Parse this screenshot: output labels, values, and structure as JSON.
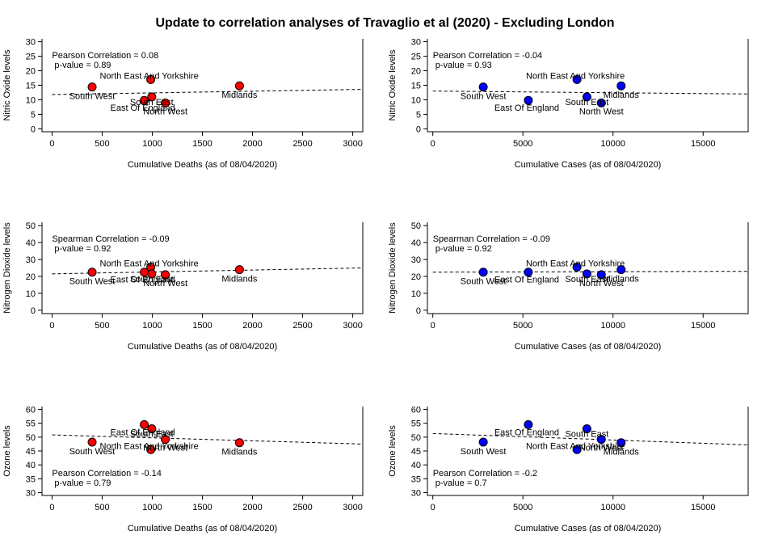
{
  "title": "Update to correlation analyses of Travaglio et al (2020) - Excluding London",
  "chart_data": [
    {
      "type": "scatter",
      "xlabel": "Cumulative Deaths (as of 08/04/2020)",
      "ylabel": "Nitric Oxide levels",
      "xlim": [
        -100,
        3100
      ],
      "xticks": [
        0,
        500,
        1000,
        1500,
        2000,
        2500,
        3000
      ],
      "ylim": [
        -1,
        31
      ],
      "yticks": [
        0,
        5,
        10,
        15,
        20,
        25,
        30
      ],
      "point_color": "#ff0000",
      "stats": [
        "Pearson Correlation = 0.08",
        "p-value = 0.89"
      ],
      "stats_position": "top-left",
      "trend": [
        [
          0,
          11.8
        ],
        [
          3100,
          13.6
        ]
      ],
      "points": [
        {
          "x": 400,
          "y": 14.4,
          "label": "South West"
        },
        {
          "x": 985,
          "y": 17.0,
          "label": "North East And Yorkshire"
        },
        {
          "x": 920,
          "y": 9.8,
          "label": "East Of England"
        },
        {
          "x": 995,
          "y": 11.0,
          "label": "South East"
        },
        {
          "x": 1130,
          "y": 8.9,
          "label": "North West"
        },
        {
          "x": 1870,
          "y": 14.8,
          "label": "Midlands"
        }
      ]
    },
    {
      "type": "scatter",
      "xlabel": "Cumulative Cases (as of 08/04/2020)",
      "ylabel": "Nitric Oxide levels",
      "xlim": [
        -300,
        17500
      ],
      "xticks": [
        0,
        5000,
        10000,
        15000
      ],
      "ylim": [
        -1,
        31
      ],
      "yticks": [
        0,
        5,
        10,
        15,
        20,
        25,
        30
      ],
      "point_color": "#0000ff",
      "stats": [
        "Pearson Correlation = -0.04",
        "p-value = 0.93"
      ],
      "stats_position": "top-left",
      "trend": [
        [
          0,
          13.0
        ],
        [
          17500,
          12.0
        ]
      ],
      "points": [
        {
          "x": 2800,
          "y": 14.4,
          "label": "South West"
        },
        {
          "x": 8000,
          "y": 17.0,
          "label": "North East And Yorkshire"
        },
        {
          "x": 5300,
          "y": 9.8,
          "label": "East Of England"
        },
        {
          "x": 8550,
          "y": 11.0,
          "label": "South East"
        },
        {
          "x": 9350,
          "y": 8.9,
          "label": "North West"
        },
        {
          "x": 10450,
          "y": 14.8,
          "label": "Midlands"
        }
      ]
    },
    {
      "type": "scatter",
      "xlabel": "Cumulative Deaths (as of 08/04/2020)",
      "ylabel": "Nitrogen Dioxide levels",
      "xlim": [
        -100,
        3100
      ],
      "xticks": [
        0,
        500,
        1000,
        1500,
        2000,
        2500,
        3000
      ],
      "ylim": [
        -2,
        52
      ],
      "yticks": [
        0,
        10,
        20,
        30,
        40,
        50
      ],
      "point_color": "#ff0000",
      "stats": [
        "Spearman Correlation = -0.09",
        "p-value = 0.92"
      ],
      "stats_position": "top-left",
      "trend": [
        [
          0,
          21.5
        ],
        [
          3100,
          25.0
        ]
      ],
      "points": [
        {
          "x": 400,
          "y": 22.5,
          "label": "South West"
        },
        {
          "x": 920,
          "y": 22.5,
          "label": "East Of England"
        },
        {
          "x": 985,
          "y": 25.5,
          "label": "North East And Yorkshire"
        },
        {
          "x": 995,
          "y": 21.5,
          "label": "South East"
        },
        {
          "x": 1130,
          "y": 21.0,
          "label": "North West"
        },
        {
          "x": 1870,
          "y": 24.0,
          "label": "Midlands"
        }
      ]
    },
    {
      "type": "scatter",
      "xlabel": "Cumulative Cases (as of 08/04/2020)",
      "ylabel": "Nitrogen Dioxide levels",
      "xlim": [
        -300,
        17500
      ],
      "xticks": [
        0,
        5000,
        10000,
        15000
      ],
      "ylim": [
        -2,
        52
      ],
      "yticks": [
        0,
        10,
        20,
        30,
        40,
        50
      ],
      "point_color": "#0000ff",
      "stats": [
        "Spearman Correlation = -0.09",
        "p-value = 0.92"
      ],
      "stats_position": "top-left",
      "trend": [
        [
          0,
          22.5
        ],
        [
          17500,
          23.0
        ]
      ],
      "points": [
        {
          "x": 2800,
          "y": 22.5,
          "label": "South West"
        },
        {
          "x": 5300,
          "y": 22.5,
          "label": "East Of England"
        },
        {
          "x": 8000,
          "y": 25.5,
          "label": "North East And Yorkshire"
        },
        {
          "x": 8550,
          "y": 21.5,
          "label": "South East"
        },
        {
          "x": 9350,
          "y": 21.0,
          "label": "North West"
        },
        {
          "x": 10450,
          "y": 24.0,
          "label": "Midlands"
        }
      ]
    },
    {
      "type": "scatter",
      "xlabel": "Cumulative Deaths (as of 08/04/2020)",
      "ylabel": "Ozone levels",
      "xlim": [
        -100,
        3100
      ],
      "xticks": [
        0,
        500,
        1000,
        1500,
        2000,
        2500,
        3000
      ],
      "ylim": [
        29,
        61
      ],
      "yticks": [
        30,
        35,
        40,
        45,
        50,
        55,
        60
      ],
      "point_color": "#ff0000",
      "stats": [
        "Pearson Correlation = -0.14",
        "p-value = 0.79"
      ],
      "stats_position": "bottom-left",
      "trend": [
        [
          0,
          50.8
        ],
        [
          3100,
          47.5
        ]
      ],
      "points": [
        {
          "x": 400,
          "y": 48.2,
          "label": "South West"
        },
        {
          "x": 920,
          "y": 54.5,
          "label": "East Of England"
        },
        {
          "x": 985,
          "y": 45.5,
          "label": "North East And Yorkshire"
        },
        {
          "x": 995,
          "y": 53.0,
          "label": "South East"
        },
        {
          "x": 1130,
          "y": 49.2,
          "label": "North West"
        },
        {
          "x": 1870,
          "y": 48.0,
          "label": "Midlands"
        }
      ]
    },
    {
      "type": "scatter",
      "xlabel": "Cumulative Cases (as of 08/04/2020)",
      "ylabel": "Ozone levels",
      "xlim": [
        -300,
        17500
      ],
      "xticks": [
        0,
        5000,
        10000,
        15000
      ],
      "ylim": [
        29,
        61
      ],
      "yticks": [
        30,
        35,
        40,
        45,
        50,
        55,
        60
      ],
      "point_color": "#0000ff",
      "stats": [
        "Pearson Correlation = -0.2",
        "p-value = 0.7"
      ],
      "stats_position": "bottom-left",
      "trend": [
        [
          0,
          51.3
        ],
        [
          17500,
          47.2
        ]
      ],
      "points": [
        {
          "x": 2800,
          "y": 48.2,
          "label": "South West"
        },
        {
          "x": 5300,
          "y": 54.5,
          "label": "East Of England"
        },
        {
          "x": 8000,
          "y": 45.5,
          "label": "North East And Yorkshire"
        },
        {
          "x": 8550,
          "y": 53.0,
          "label": "South East"
        },
        {
          "x": 9350,
          "y": 49.2,
          "label": "North West"
        },
        {
          "x": 10450,
          "y": 48.0,
          "label": "Midlands"
        }
      ]
    }
  ]
}
